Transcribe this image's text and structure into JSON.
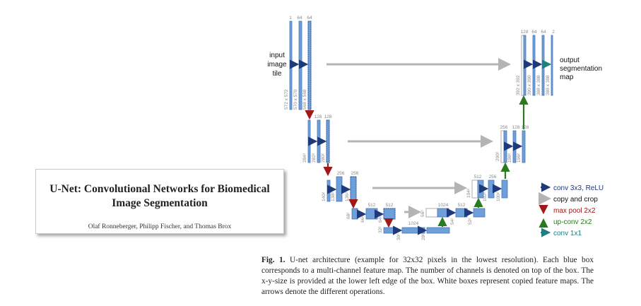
{
  "paper": {
    "title_line1": "U-Net: Convolutional Networks for Biomedical",
    "title_line2": "Image Segmentation",
    "authors": "Olaf Ronneberger, Philipp Fischer, and Thomas Brox"
  },
  "figure": {
    "input_label": [
      "input",
      "image",
      "tile"
    ],
    "output_label": [
      "output",
      "segmentation",
      "map"
    ],
    "channels": {
      "l1_enc": [
        "1",
        "64",
        "64"
      ],
      "l2_enc": [
        "128",
        "128"
      ],
      "l3_enc": [
        "256",
        "256"
      ],
      "l4_enc": [
        "512",
        "512"
      ],
      "l5": [
        "1024"
      ],
      "l4_dec": [
        "1024",
        "512",
        "512"
      ],
      "l3_dec": [
        "512",
        "256",
        "256"
      ],
      "l2_dec": [
        "256",
        "128",
        "128"
      ],
      "l1_dec": [
        "128",
        "64",
        "64",
        "2"
      ]
    },
    "sizes": {
      "l1_enc": [
        "572 x 572",
        "570 x 570",
        "568 x 568"
      ],
      "l2_enc": [
        "284²",
        "282²",
        "280²"
      ],
      "l3_enc": [
        "140²",
        "138²",
        "136²"
      ],
      "l4_enc": [
        "68²",
        "66²",
        "64²"
      ],
      "l5": [
        "32²",
        "30²",
        "28²"
      ],
      "l4_dec": [
        "56²",
        "54²",
        "52²"
      ],
      "l3_dec": [
        "104²",
        "102²",
        "100²"
      ],
      "l2_dec": [
        "200²",
        "198²",
        "196²"
      ],
      "l1_dec": [
        "392 x 392",
        "390 x 390",
        "388 x 388",
        "388 x 388"
      ]
    },
    "legend": [
      {
        "label": "conv 3x3, ReLU",
        "color": "#1f3a7a"
      },
      {
        "label": "copy and crop",
        "color": "#b4b4b4"
      },
      {
        "label": "max pool 2x2",
        "color": "#a01818"
      },
      {
        "label": "up-conv 2x2",
        "color": "#2a7a1e"
      },
      {
        "label": "conv 1x1",
        "color": "#1f8080"
      }
    ],
    "colors": {
      "box": "#6f9fd8",
      "box_stroke": "#4a78b8",
      "copied_box": "#ffffff",
      "text_gray": "#888888"
    }
  },
  "caption": {
    "label": "Fig. 1.",
    "text": " U-net architecture (example for 32x32 pixels in the lowest resolution). Each blue box corresponds to a multi-channel feature map. The number of channels is denoted on top of the box. The x-y-size is provided at the lower left edge of the box. White boxes represent copied feature maps. The arrows denote the different operations."
  }
}
